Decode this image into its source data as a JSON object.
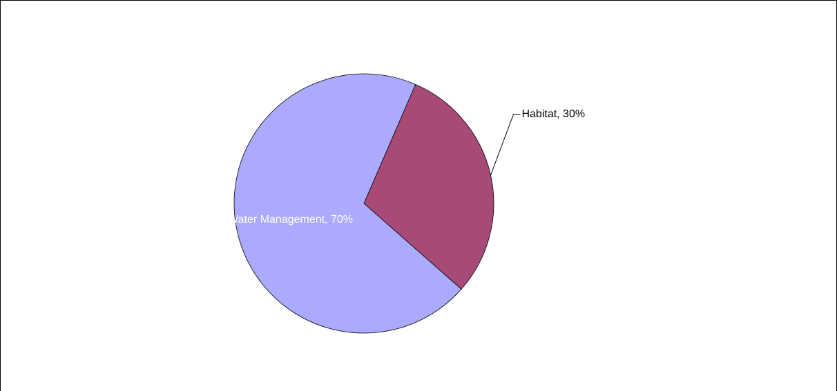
{
  "chart_data": {
    "type": "pie",
    "categories": [
      "Habitat",
      "Water Management"
    ],
    "values": [
      30,
      70
    ],
    "value_labels": [
      "Habitat, 30%",
      "Water Management, 70%"
    ],
    "colors": [
      "#a84a77",
      "#aaaaff"
    ]
  }
}
